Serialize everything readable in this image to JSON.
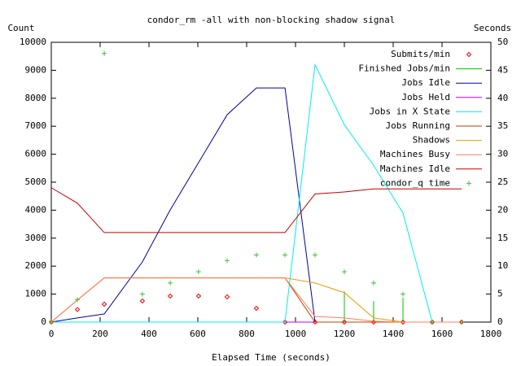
{
  "chart_data": {
    "type": "line",
    "title": "condor_rm -all with non-blocking shadow signal",
    "x_label": "Elapsed Time (seconds)",
    "y_label": "Count",
    "y2_label": "Seconds",
    "x": [
      0,
      107,
      217,
      373,
      487,
      603,
      720,
      840,
      957,
      1080,
      1200,
      1320,
      1440,
      1560,
      1680
    ],
    "xlim": [
      0,
      1800
    ],
    "xticks": [
      0,
      200,
      400,
      600,
      800,
      1000,
      1200,
      1400,
      1600,
      1800
    ],
    "ylim": [
      0,
      10000
    ],
    "yticks": [
      0,
      1000,
      2000,
      3000,
      4000,
      5000,
      6000,
      7000,
      8000,
      9000,
      10000
    ],
    "y2lim": [
      0,
      50
    ],
    "y2ticks": [
      0,
      5,
      10,
      15,
      20,
      25,
      30,
      35,
      40,
      45,
      50
    ],
    "legend": "top-right",
    "series": [
      {
        "name": "Submits/min",
        "style": "points",
        "marker": "diamond",
        "color": "#ff0000",
        "values": [
          0,
          450,
          640,
          755,
          930,
          930,
          900,
          490,
          0,
          0,
          0,
          0,
          0,
          0,
          0
        ]
      },
      {
        "name": "Finished Jobs/min",
        "style": "impulses",
        "color": "#00c000",
        "values": [
          0,
          0,
          0,
          0,
          0,
          0,
          0,
          0,
          0,
          0,
          1100,
          750,
          870,
          0,
          0
        ]
      },
      {
        "name": "Jobs Idle",
        "style": "line",
        "color": "#0000a0",
        "values": [
          0,
          150,
          290,
          2150,
          4010,
          5700,
          7410,
          8370,
          8370,
          0,
          0,
          0,
          0,
          0,
          0
        ]
      },
      {
        "name": "Jobs Held",
        "style": "line",
        "color": "#c000ff",
        "values": [
          0,
          0,
          0,
          0,
          0,
          0,
          0,
          0,
          0,
          0,
          0,
          0,
          0,
          0,
          0
        ]
      },
      {
        "name": "Jobs in X State",
        "style": "line",
        "color": "#00eeee",
        "values": [
          0,
          0,
          0,
          0,
          0,
          0,
          0,
          0,
          0,
          9200,
          7050,
          5600,
          3900,
          0,
          0
        ]
      },
      {
        "name": "Jobs Running",
        "style": "line",
        "color": "#c04000",
        "values": [
          0,
          790,
          1580,
          1580,
          1580,
          1580,
          1580,
          1580,
          1580,
          0,
          0,
          0,
          0,
          0,
          0
        ]
      },
      {
        "name": "Shadows",
        "style": "line",
        "color": "#ee9a00",
        "values": [
          0,
          790,
          1580,
          1580,
          1580,
          1580,
          1580,
          1580,
          1580,
          1400,
          1050,
          150,
          0,
          0,
          0
        ]
      },
      {
        "name": "Machines Busy",
        "style": "line",
        "color": "#ff8060",
        "values": [
          0,
          790,
          1580,
          1580,
          1580,
          1580,
          1580,
          1580,
          1580,
          200,
          150,
          30,
          0,
          0,
          0
        ]
      },
      {
        "name": "Machines Idle",
        "style": "line",
        "color": "#c00000",
        "values": [
          4800,
          4250,
          3200,
          3200,
          3200,
          3200,
          3200,
          3200,
          3200,
          4580,
          4650,
          4760,
          4760,
          4760,
          4760
        ]
      },
      {
        "name": "condor_q time",
        "style": "points",
        "marker": "plus",
        "axis": "y2",
        "color": "#40c040",
        "values": [
          0,
          4,
          48,
          5,
          7,
          9,
          11,
          12,
          12,
          12,
          9,
          7,
          5,
          0,
          0
        ]
      }
    ]
  }
}
